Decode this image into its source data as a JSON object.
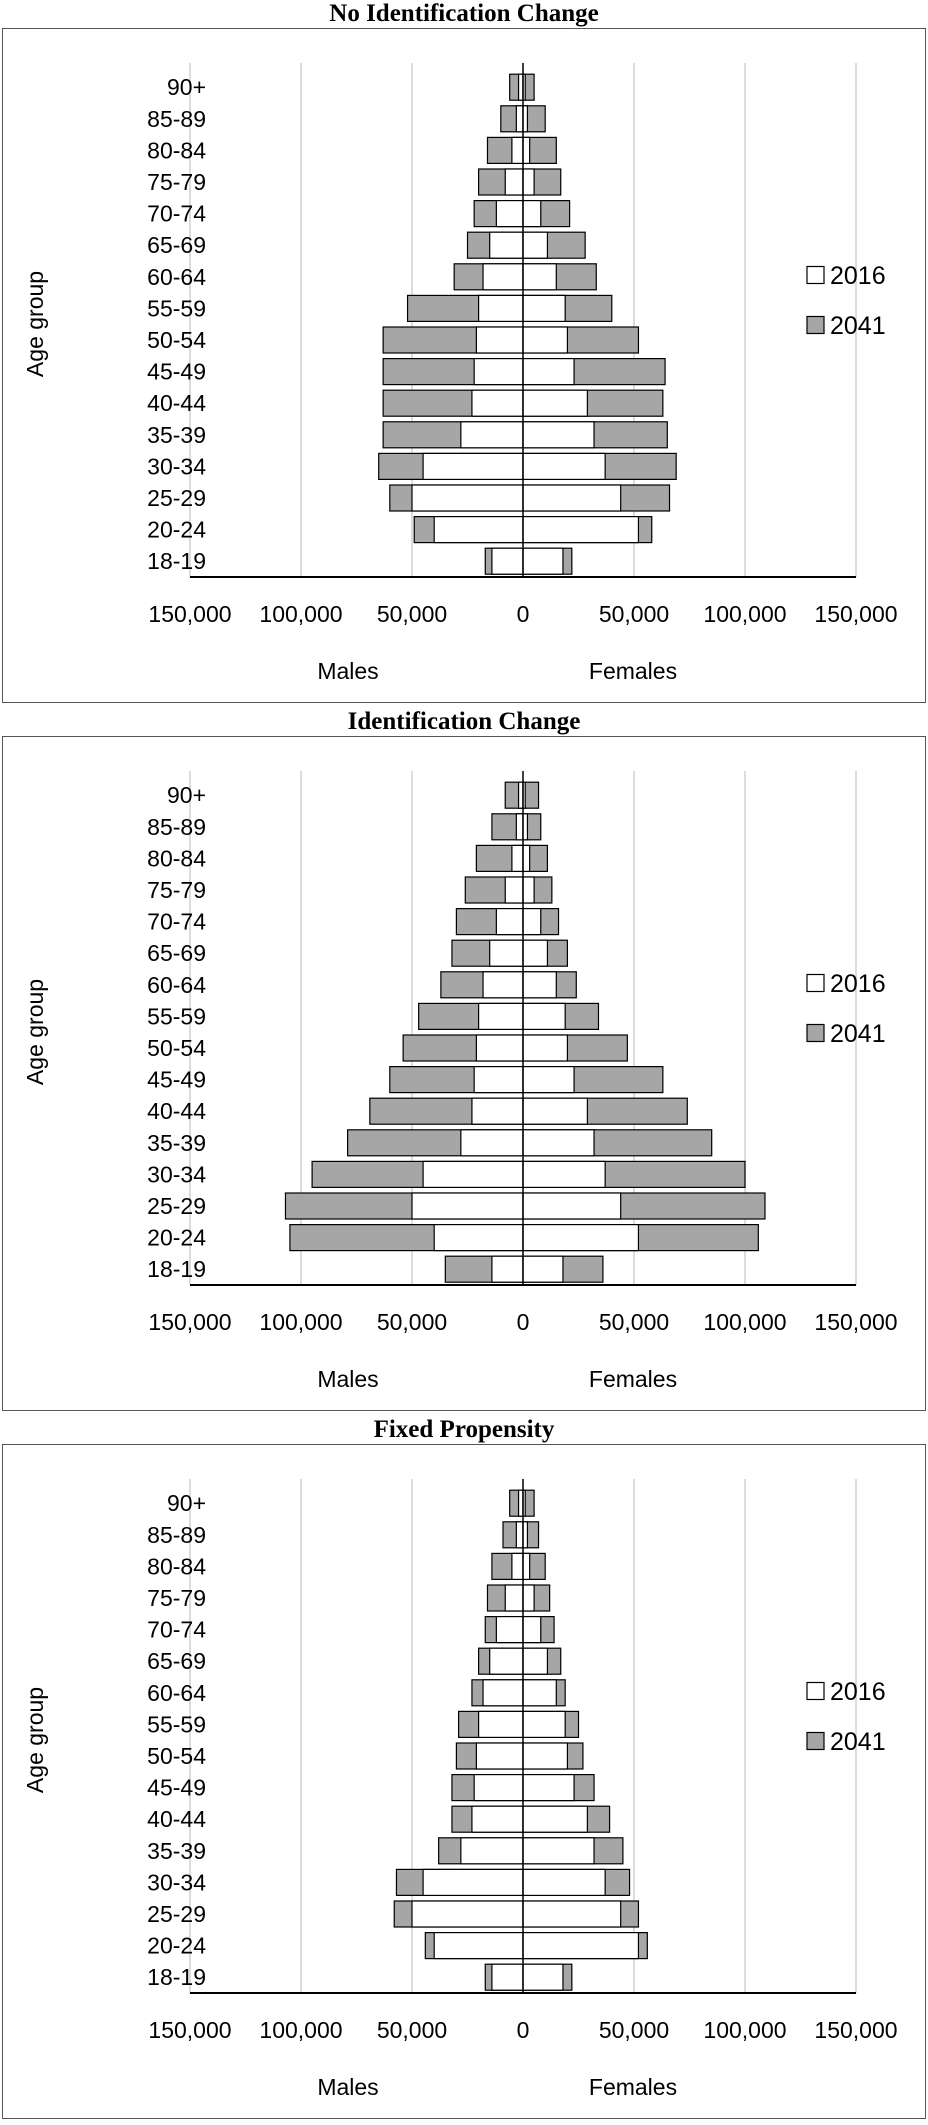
{
  "chart_data": [
    {
      "type": "bar",
      "orientation": "horizontal-population-pyramid",
      "title": "No Identification Change",
      "ylabel": "Age group",
      "xlabel_left": "Males",
      "xlabel_right": "Females",
      "xlim": [
        -150000,
        150000
      ],
      "x_ticks": [
        "150,000",
        "100,000",
        "50,000",
        "0",
        "50,000",
        "100,000",
        "150,000"
      ],
      "categories": [
        "18-19",
        "20-24",
        "25-29",
        "30-34",
        "35-39",
        "40-44",
        "45-49",
        "50-54",
        "55-59",
        "60-64",
        "65-69",
        "70-74",
        "75-79",
        "80-84",
        "85-89",
        "90+"
      ],
      "legend_position": "right",
      "series": [
        {
          "name": "2016",
          "color": "#ffffff",
          "males": [
            14000,
            40000,
            50000,
            45000,
            28000,
            23000,
            22000,
            21000,
            20000,
            18000,
            15000,
            12000,
            8000,
            5000,
            3000,
            2000
          ],
          "females": [
            18000,
            52000,
            44000,
            37000,
            32000,
            29000,
            23000,
            20000,
            19000,
            15000,
            11000,
            8000,
            5000,
            3000,
            2000,
            1000
          ]
        },
        {
          "name": "2041",
          "color": "#a6a6a6",
          "males": [
            17000,
            49000,
            60000,
            65000,
            63000,
            63000,
            63000,
            63000,
            52000,
            31000,
            25000,
            22000,
            20000,
            16000,
            10000,
            6000
          ],
          "females": [
            22000,
            58000,
            66000,
            69000,
            65000,
            63000,
            64000,
            52000,
            40000,
            33000,
            28000,
            21000,
            17000,
            15000,
            10000,
            5000
          ]
        }
      ]
    },
    {
      "type": "bar",
      "orientation": "horizontal-population-pyramid",
      "title": "Identification Change",
      "ylabel": "Age group",
      "xlabel_left": "Males",
      "xlabel_right": "Females",
      "xlim": [
        -150000,
        150000
      ],
      "x_ticks": [
        "150,000",
        "100,000",
        "50,000",
        "0",
        "50,000",
        "100,000",
        "150,000"
      ],
      "categories": [
        "18-19",
        "20-24",
        "25-29",
        "30-34",
        "35-39",
        "40-44",
        "45-49",
        "50-54",
        "55-59",
        "60-64",
        "65-69",
        "70-74",
        "75-79",
        "80-84",
        "85-89",
        "90+"
      ],
      "legend_position": "right",
      "series": [
        {
          "name": "2016",
          "color": "#ffffff",
          "males": [
            14000,
            40000,
            50000,
            45000,
            28000,
            23000,
            22000,
            21000,
            20000,
            18000,
            15000,
            12000,
            8000,
            5000,
            3000,
            2000
          ],
          "females": [
            18000,
            52000,
            44000,
            37000,
            32000,
            29000,
            23000,
            20000,
            19000,
            15000,
            11000,
            8000,
            5000,
            3000,
            2000,
            1000
          ]
        },
        {
          "name": "2041",
          "color": "#a6a6a6",
          "males": [
            35000,
            105000,
            107000,
            95000,
            79000,
            69000,
            60000,
            54000,
            47000,
            37000,
            32000,
            30000,
            26000,
            21000,
            14000,
            8000
          ],
          "females": [
            36000,
            106000,
            109000,
            100000,
            85000,
            74000,
            63000,
            47000,
            34000,
            24000,
            20000,
            16000,
            13000,
            11000,
            8000,
            7000
          ]
        }
      ]
    },
    {
      "type": "bar",
      "orientation": "horizontal-population-pyramid",
      "title": "Fixed Propensity",
      "ylabel": "Age group",
      "xlabel_left": "Males",
      "xlabel_right": "Females",
      "xlim": [
        -150000,
        150000
      ],
      "x_ticks": [
        "150,000",
        "100,000",
        "50,000",
        "0",
        "50,000",
        "100,000",
        "150,000"
      ],
      "categories": [
        "18-19",
        "20-24",
        "25-29",
        "30-34",
        "35-39",
        "40-44",
        "45-49",
        "50-54",
        "55-59",
        "60-64",
        "65-69",
        "70-74",
        "75-79",
        "80-84",
        "85-89",
        "90+"
      ],
      "legend_position": "right",
      "series": [
        {
          "name": "2016",
          "color": "#ffffff",
          "males": [
            14000,
            40000,
            50000,
            45000,
            28000,
            23000,
            22000,
            21000,
            20000,
            18000,
            15000,
            12000,
            8000,
            5000,
            3000,
            2000
          ],
          "females": [
            18000,
            52000,
            44000,
            37000,
            32000,
            29000,
            23000,
            20000,
            19000,
            15000,
            11000,
            8000,
            5000,
            3000,
            2000,
            1000
          ]
        },
        {
          "name": "2041",
          "color": "#a6a6a6",
          "males": [
            17000,
            44000,
            58000,
            57000,
            38000,
            32000,
            32000,
            30000,
            29000,
            23000,
            20000,
            17000,
            16000,
            14000,
            9000,
            6000
          ],
          "females": [
            22000,
            56000,
            52000,
            48000,
            45000,
            39000,
            32000,
            27000,
            25000,
            19000,
            17000,
            14000,
            12000,
            10000,
            7000,
            5000
          ]
        }
      ]
    }
  ]
}
